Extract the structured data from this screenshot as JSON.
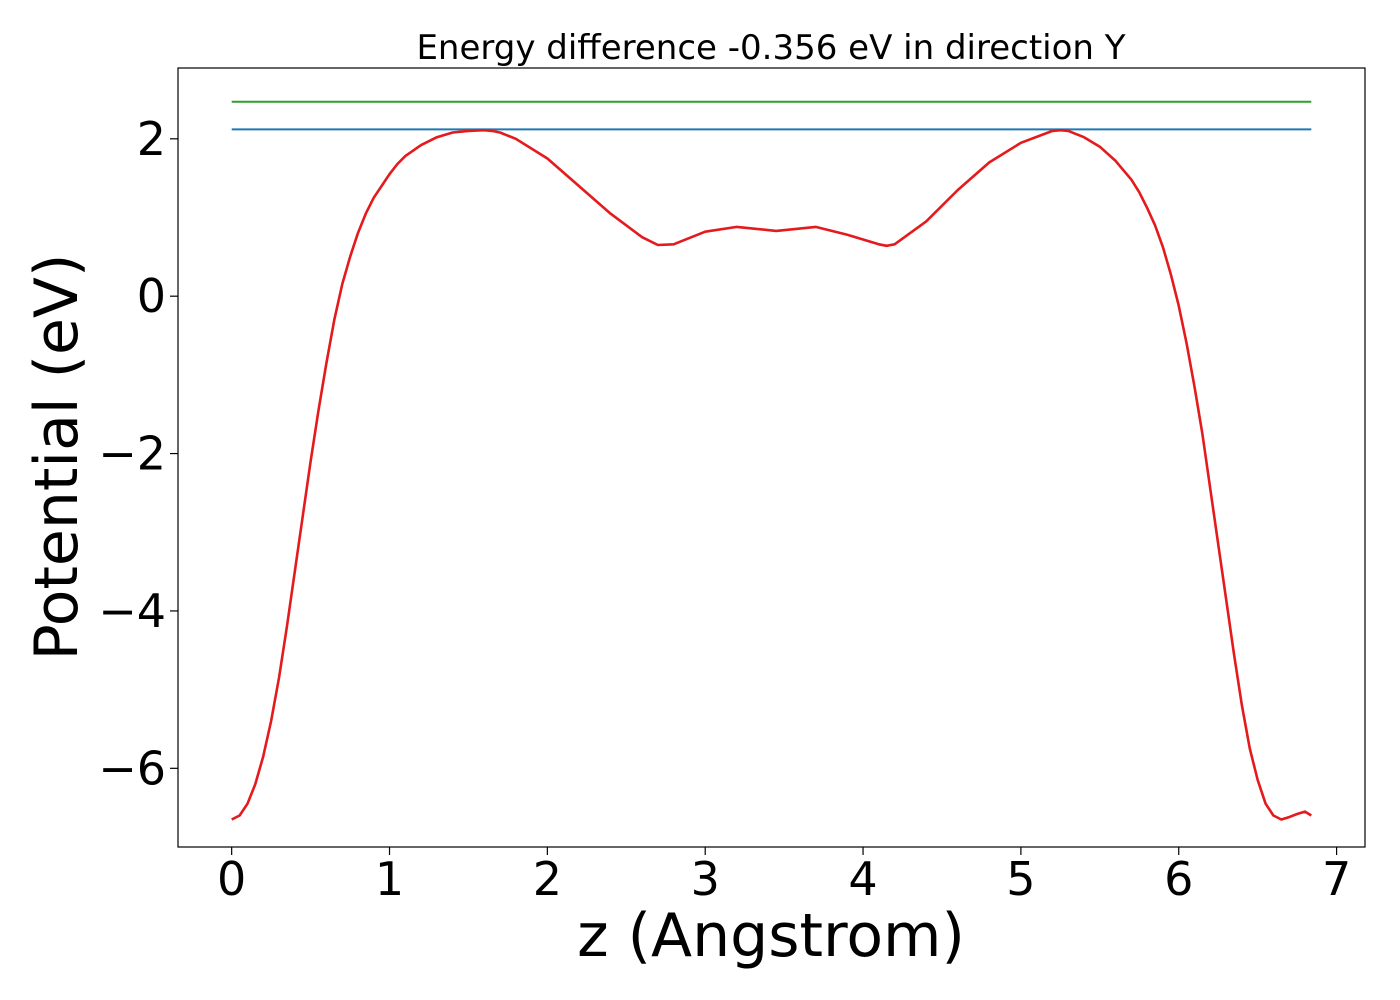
{
  "chart_data": {
    "type": "line",
    "title": "Energy difference -0.356 eV in direction Y",
    "xlabel": "z (Angstrom)",
    "ylabel": "Potential (eV)",
    "xlim": [
      -0.34,
      7.18
    ],
    "ylim": [
      -7.0,
      2.9
    ],
    "x_ticks": [
      0,
      1,
      2,
      3,
      4,
      5,
      6,
      7
    ],
    "x_tick_labels": [
      "0",
      "1",
      "2",
      "3",
      "4",
      "5",
      "6",
      "7"
    ],
    "y_ticks": [
      -6,
      -4,
      -2,
      0,
      2
    ],
    "y_tick_labels": [
      "−6",
      "−4",
      "−2",
      "0",
      "2"
    ],
    "grid": false,
    "series": [
      {
        "color": "#2ca02c",
        "x": [
          0,
          6.84
        ],
        "y": [
          2.47,
          2.47
        ]
      },
      {
        "color": "#1f77b4",
        "x": [
          0,
          6.84
        ],
        "y": [
          2.12,
          2.12
        ]
      },
      {
        "color": "#e41a1c",
        "x": [
          0.0,
          0.05,
          0.1,
          0.15,
          0.2,
          0.25,
          0.3,
          0.35,
          0.4,
          0.45,
          0.5,
          0.55,
          0.6,
          0.65,
          0.7,
          0.75,
          0.8,
          0.85,
          0.9,
          0.95,
          1.0,
          1.05,
          1.1,
          1.2,
          1.3,
          1.4,
          1.5,
          1.6,
          1.65,
          1.7,
          1.8,
          2.0,
          2.2,
          2.4,
          2.6,
          2.7,
          2.8,
          3.0,
          3.2,
          3.45,
          3.7,
          3.9,
          4.1,
          4.15,
          4.2,
          4.4,
          4.6,
          4.8,
          5.0,
          5.2,
          5.25,
          5.3,
          5.4,
          5.5,
          5.6,
          5.7,
          5.75,
          5.8,
          5.85,
          5.9,
          5.95,
          6.0,
          6.05,
          6.1,
          6.15,
          6.2,
          6.25,
          6.3,
          6.35,
          6.4,
          6.45,
          6.5,
          6.55,
          6.6,
          6.65,
          6.7,
          6.75,
          6.8,
          6.84
        ],
        "y": [
          -6.65,
          -6.6,
          -6.45,
          -6.2,
          -5.85,
          -5.4,
          -4.85,
          -4.2,
          -3.5,
          -2.8,
          -2.1,
          -1.45,
          -0.85,
          -0.3,
          0.15,
          0.5,
          0.8,
          1.05,
          1.25,
          1.4,
          1.55,
          1.68,
          1.78,
          1.92,
          2.02,
          2.08,
          2.1,
          2.11,
          2.1,
          2.08,
          2.0,
          1.75,
          1.4,
          1.05,
          0.75,
          0.65,
          0.66,
          0.82,
          0.88,
          0.83,
          0.88,
          0.78,
          0.66,
          0.64,
          0.66,
          0.95,
          1.35,
          1.7,
          1.95,
          2.1,
          2.11,
          2.1,
          2.02,
          1.9,
          1.72,
          1.48,
          1.32,
          1.12,
          0.9,
          0.62,
          0.28,
          -0.12,
          -0.6,
          -1.15,
          -1.75,
          -2.45,
          -3.15,
          -3.85,
          -4.55,
          -5.2,
          -5.75,
          -6.15,
          -6.45,
          -6.6,
          -6.65,
          -6.62,
          -6.58,
          -6.55,
          -6.6
        ]
      }
    ]
  }
}
